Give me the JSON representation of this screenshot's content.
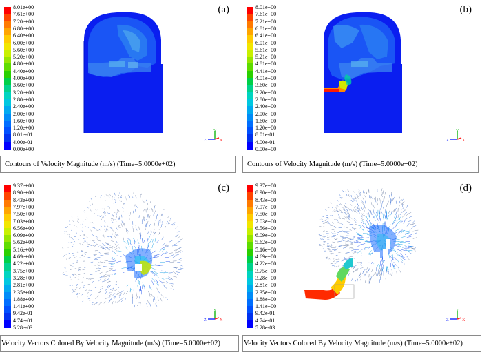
{
  "colors": [
    "#ff0000",
    "#ff4500",
    "#ff7a00",
    "#ffa500",
    "#ffcc00",
    "#f2e600",
    "#c8f000",
    "#96e600",
    "#5fdc00",
    "#2ad000",
    "#00d048",
    "#00d28c",
    "#00d4c0",
    "#00c8e0",
    "#00aaf0",
    "#008cf8",
    "#006eff",
    "#0050ff",
    "#0032f0",
    "#0000ff"
  ],
  "panels": [
    {
      "label": "(a)",
      "legend": [
        "8.01e+00",
        "7.61e+00",
        "7.20e+00",
        "6.80e+00",
        "6.40e+00",
        "6.00e+00",
        "5.60e+00",
        "5.20e+00",
        "4.80e+00",
        "4.40e+00",
        "4.00e+00",
        "3.60e+00",
        "3.20e+00",
        "2.80e+00",
        "2.40e+00",
        "2.00e+00",
        "1.60e+00",
        "1.20e+00",
        "8.01e-01",
        "4.00e-01",
        "0.00e+00"
      ],
      "caption": "Contours of Velocity Magnitude (m/s) (Time=5.0000e+02)",
      "axes": {
        "y": "Y",
        "z": "Z",
        "x": "X"
      }
    },
    {
      "label": "(b)",
      "legend": [
        "8.01e+00",
        "7.61e+00",
        "7.21e+00",
        "6.81e+00",
        "6.41e+00",
        "6.01e+00",
        "5.61e+00",
        "5.21e+00",
        "4.81e+00",
        "4.41e+00",
        "4.01e+00",
        "3.60e+00",
        "3.20e+00",
        "2.80e+00",
        "2.40e+00",
        "2.00e+00",
        "1.60e+00",
        "1.20e+00",
        "8.01e-01",
        "4.00e-01",
        "0.00e+00"
      ],
      "caption": "Contours of Velocity Magnitude (m/s) (Time=5.0000e+02)",
      "axes": {
        "y": "Y",
        "z": "Z",
        "x": "X"
      }
    },
    {
      "label": "(c)",
      "legend": [
        "9.37e+00",
        "8.90e+00",
        "8.43e+00",
        "7.97e+00",
        "7.50e+00",
        "7.03e+00",
        "6.56e+00",
        "6.09e+00",
        "5.62e+00",
        "5.16e+00",
        "4.69e+00",
        "4.22e+00",
        "3.75e+00",
        "3.28e+00",
        "2.81e+00",
        "2.35e+00",
        "1.88e+00",
        "1.41e+00",
        "9.42e-01",
        "4.74e-01",
        "5.28e-03"
      ],
      "caption": "Velocity Vectors Colored By Velocity Magnitude (m/s) (Time=5.0000e+02)",
      "axes": {
        "y": "Y",
        "z": "Z",
        "x": "X"
      }
    },
    {
      "label": "(d)",
      "legend": [
        "9.37e+00",
        "8.90e+00",
        "8.43e+00",
        "7.97e+00",
        "7.50e+00",
        "7.03e+00",
        "6.56e+00",
        "6.09e+00",
        "5.62e+00",
        "5.16e+00",
        "4.69e+00",
        "4.22e+00",
        "3.75e+00",
        "3.28e+00",
        "2.81e+00",
        "2.35e+00",
        "1.88e+00",
        "1.41e+00",
        "9.42e-01",
        "4.74e-01",
        "5.28e-03"
      ],
      "caption": "Velocity Vectors Colored By Velocity Magnitude (m/s) (Time=5.0000e+02)",
      "axes": {
        "y": "Y",
        "z": "Z",
        "x": "X"
      }
    }
  ]
}
